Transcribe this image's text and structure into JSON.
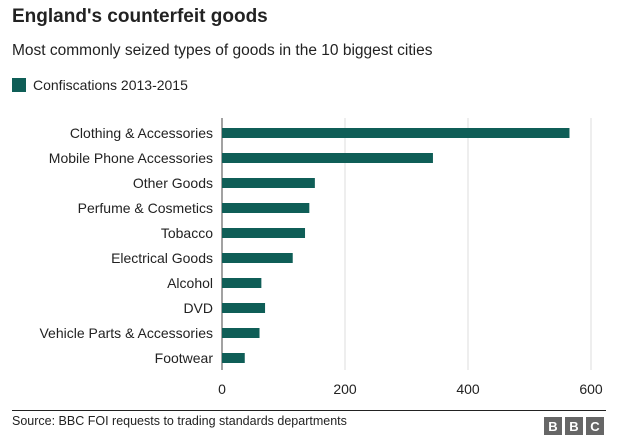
{
  "chart_data": {
    "type": "bar",
    "orientation": "horizontal",
    "title": "England's counterfeit goods",
    "subtitle": "Most commonly seized types of goods in the 10 biggest cities",
    "series": [
      {
        "name": "Confiscations 2013-2015",
        "color": "#0f5e57",
        "values": [
          565,
          343,
          151,
          142,
          135,
          115,
          64,
          70,
          61,
          37
        ]
      }
    ],
    "categories": [
      "Clothing & Accessories",
      "Mobile Phone Accessories",
      "Other Goods",
      "Perfume & Cosmetics",
      "Tobacco",
      "Electrical Goods",
      "Alcohol",
      "DVD",
      "Vehicle Parts & Accessories",
      "Footwear"
    ],
    "xlim": [
      0,
      600
    ],
    "xticks": [
      0,
      200,
      400,
      600
    ],
    "grid": true,
    "legend_position": "top-left"
  },
  "footer": {
    "source": "Source: BBC FOI requests to trading standards departments",
    "logo_letters": [
      "B",
      "B",
      "C"
    ]
  }
}
